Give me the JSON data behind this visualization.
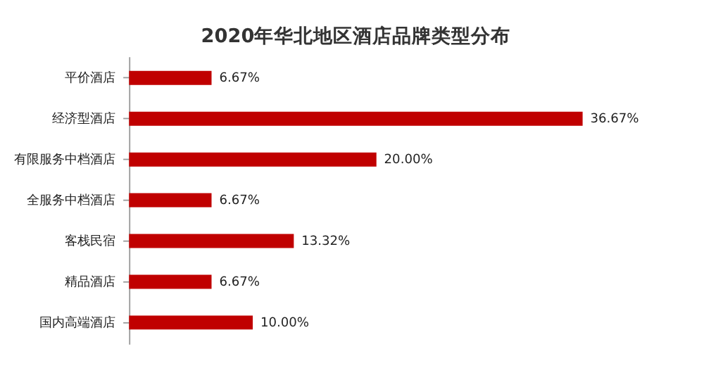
{
  "chart_data": {
    "type": "bar",
    "orientation": "horizontal",
    "title": "2020年华北地区酒店品牌类型分布",
    "categories": [
      "平价酒店",
      "经济型酒店",
      "有限服务中档酒店",
      "全服务中档酒店",
      "客栈民宿",
      "精品酒店",
      "国内高端酒店"
    ],
    "values": [
      6.67,
      36.67,
      20.0,
      6.67,
      13.32,
      6.67,
      10.0
    ],
    "value_labels": [
      "6.67%",
      "36.67%",
      "20.00%",
      "6.67%",
      "13.32%",
      "6.67%",
      "10.00%"
    ],
    "color": "#c00000"
  }
}
